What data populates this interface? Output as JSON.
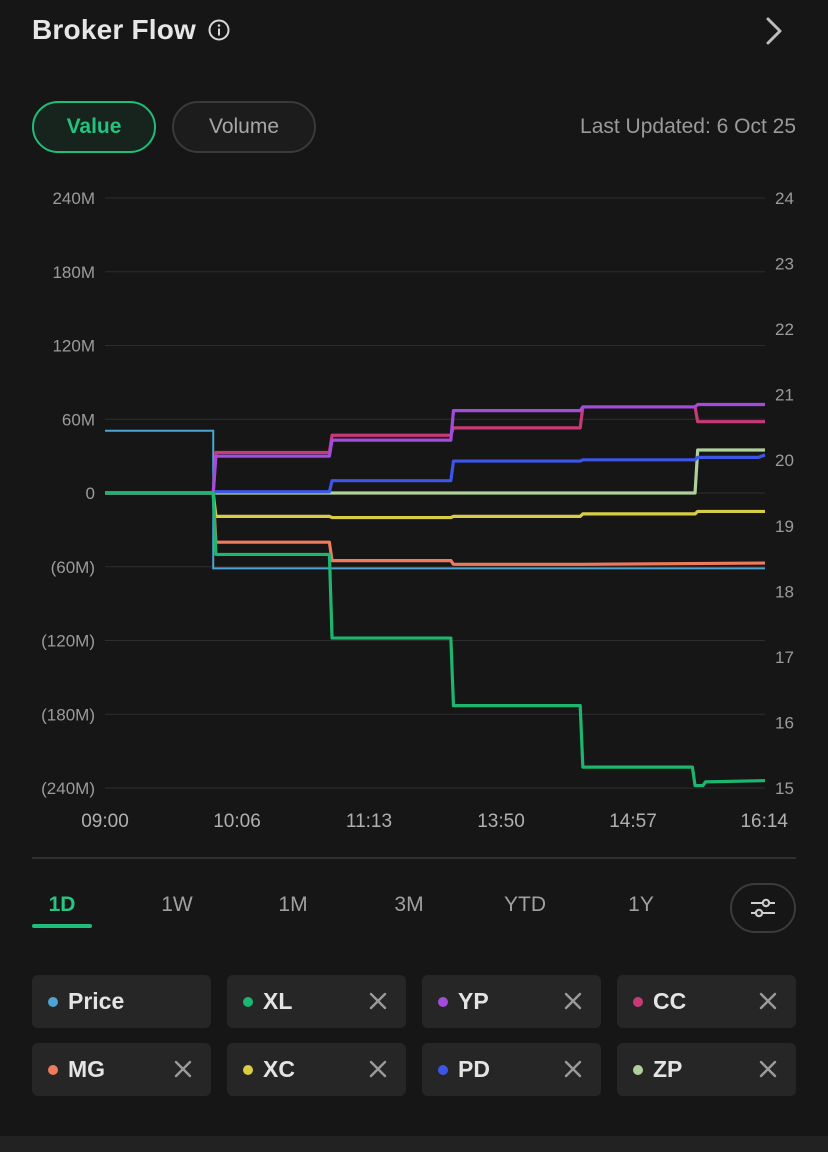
{
  "header": {
    "title": "Broker Flow"
  },
  "toggle": {
    "value_label": "Value",
    "volume_label": "Volume",
    "selected": "Value"
  },
  "last_updated": "Last Updated: 6 Oct 25",
  "ranges": [
    {
      "label": "1D",
      "active": true
    },
    {
      "label": "1W",
      "active": false
    },
    {
      "label": "1M",
      "active": false
    },
    {
      "label": "3M",
      "active": false
    },
    {
      "label": "YTD",
      "active": false
    },
    {
      "label": "1Y",
      "active": false
    }
  ],
  "legend": [
    {
      "label": "Price",
      "color": "#4da3d4",
      "removable": false
    },
    {
      "label": "XL",
      "color": "#1db66f",
      "removable": true
    },
    {
      "label": "YP",
      "color": "#a34bdb",
      "removable": true
    },
    {
      "label": "CC",
      "color": "#c83a77",
      "removable": true
    },
    {
      "label": "MG",
      "color": "#f07a5c",
      "removable": true
    },
    {
      "label": "XC",
      "color": "#d8cd45",
      "removable": true
    },
    {
      "label": "PD",
      "color": "#3d55e8",
      "removable": true
    },
    {
      "label": "ZP",
      "color": "#aed09a",
      "removable": true
    }
  ],
  "chart_data": {
    "type": "line",
    "x_tick_labels": [
      "09:00",
      "10:06",
      "11:13",
      "13:50",
      "14:57",
      "16:14"
    ],
    "y_left_tick_labels": [
      "240M",
      "180M",
      "120M",
      "60M",
      "0",
      "(60M)",
      "(120M)",
      "(180M)",
      "(240M)"
    ],
    "y_left_ticks": [
      240,
      180,
      120,
      60,
      0,
      -60,
      -120,
      -180,
      -240
    ],
    "y_left_lim": [
      -240,
      240
    ],
    "y_right_tick_labels": [
      "24",
      "23",
      "22",
      "21",
      "20",
      "19",
      "18",
      "17",
      "16",
      "15"
    ],
    "y_right_ticks": [
      24,
      23,
      22,
      21,
      20,
      19,
      18,
      17,
      16,
      15
    ],
    "y_right_lim": [
      15,
      24
    ],
    "x_lim": [
      0,
      5
    ],
    "grid": true,
    "price_series": {
      "name": "Price",
      "color": "#4da3d4",
      "axis": "right",
      "points": [
        [
          0,
          20.45
        ],
        [
          0.82,
          20.45
        ],
        [
          0.82,
          18.35
        ],
        [
          5,
          18.35
        ]
      ]
    },
    "series": [
      {
        "name": "XL",
        "color": "#1db66f",
        "axis": "left",
        "points": [
          [
            0,
            0
          ],
          [
            0.82,
            0
          ],
          [
            0.84,
            -50
          ],
          [
            1.7,
            -50
          ],
          [
            1.72,
            -118
          ],
          [
            2.62,
            -118
          ],
          [
            2.64,
            -173
          ],
          [
            3.6,
            -173
          ],
          [
            3.62,
            -223
          ],
          [
            4.45,
            -223
          ],
          [
            4.47,
            -238
          ],
          [
            4.53,
            -238
          ],
          [
            4.55,
            -235
          ],
          [
            5,
            -234
          ]
        ]
      },
      {
        "name": "YP",
        "color": "#a34bdb",
        "axis": "left",
        "points": [
          [
            0,
            0
          ],
          [
            0.82,
            0
          ],
          [
            0.84,
            30
          ],
          [
            1.7,
            30
          ],
          [
            1.72,
            43
          ],
          [
            2.62,
            43
          ],
          [
            2.64,
            67
          ],
          [
            3.6,
            67
          ],
          [
            3.62,
            70
          ],
          [
            4.47,
            70
          ],
          [
            4.49,
            72
          ],
          [
            5,
            72
          ]
        ]
      },
      {
        "name": "CC",
        "color": "#c83a77",
        "axis": "left",
        "points": [
          [
            0,
            0
          ],
          [
            0.82,
            0
          ],
          [
            0.84,
            33
          ],
          [
            1.7,
            33
          ],
          [
            1.72,
            47
          ],
          [
            2.62,
            47
          ],
          [
            2.64,
            53
          ],
          [
            3.6,
            53
          ],
          [
            3.62,
            70
          ],
          [
            4.47,
            70
          ],
          [
            4.49,
            58
          ],
          [
            5,
            58
          ]
        ]
      },
      {
        "name": "MG",
        "color": "#f07a5c",
        "axis": "left",
        "points": [
          [
            0,
            0
          ],
          [
            0.82,
            0
          ],
          [
            0.84,
            -40
          ],
          [
            1.7,
            -40
          ],
          [
            1.72,
            -55
          ],
          [
            2.62,
            -55
          ],
          [
            2.64,
            -58
          ],
          [
            3.6,
            -58
          ],
          [
            3.62,
            -58
          ],
          [
            5,
            -57
          ]
        ]
      },
      {
        "name": "XC",
        "color": "#d8cd45",
        "axis": "left",
        "points": [
          [
            0,
            0
          ],
          [
            0.82,
            0
          ],
          [
            0.84,
            -19
          ],
          [
            1.7,
            -19
          ],
          [
            1.72,
            -20
          ],
          [
            2.62,
            -20
          ],
          [
            2.64,
            -19
          ],
          [
            3.6,
            -19
          ],
          [
            3.62,
            -17
          ],
          [
            4.47,
            -17
          ],
          [
            4.49,
            -15
          ],
          [
            5,
            -15
          ]
        ]
      },
      {
        "name": "PD",
        "color": "#3d55e8",
        "axis": "left",
        "points": [
          [
            0,
            0
          ],
          [
            0.82,
            0
          ],
          [
            0.84,
            1
          ],
          [
            1.7,
            1
          ],
          [
            1.72,
            10
          ],
          [
            2.62,
            10
          ],
          [
            2.64,
            26
          ],
          [
            3.6,
            26
          ],
          [
            3.62,
            27
          ],
          [
            4.47,
            27
          ],
          [
            4.49,
            29
          ],
          [
            4.95,
            29
          ],
          [
            5,
            31
          ]
        ]
      },
      {
        "name": "ZP",
        "color": "#aed09a",
        "axis": "left",
        "points": [
          [
            0,
            0
          ],
          [
            4.47,
            0
          ],
          [
            4.49,
            35
          ],
          [
            5,
            35
          ]
        ]
      }
    ]
  }
}
